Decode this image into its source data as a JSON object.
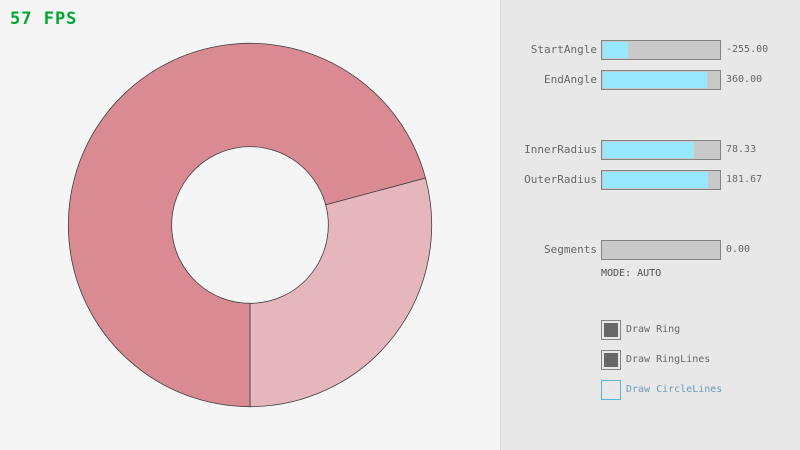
{
  "fps": "57 FPS",
  "ring": {
    "start_angle": -255,
    "end_angle": 360,
    "inner_radius": 78.33,
    "outer_radius": 181.67,
    "color_light": "#e5b7bc",
    "color_dark": "#da8a93",
    "outline": "#404040"
  },
  "controls": {
    "sliders": [
      {
        "label": "StartAngle",
        "value": "-255.00",
        "fraction": 0.217
      },
      {
        "label": "EndAngle",
        "value": "360.00",
        "fraction": 0.9
      },
      {
        "label": "InnerRadius",
        "value": "78.33",
        "fraction": 0.783
      },
      {
        "label": "OuterRadius",
        "value": "181.67",
        "fraction": 0.908
      },
      {
        "label": "Segments",
        "value": "0.00",
        "fraction": 0
      }
    ],
    "mode": "MODE: AUTO",
    "checkboxes": [
      {
        "label": "Draw Ring",
        "checked": true
      },
      {
        "label": "Draw RingLines",
        "checked": true
      },
      {
        "label": "Draw CircleLines",
        "checked": false
      }
    ]
  }
}
